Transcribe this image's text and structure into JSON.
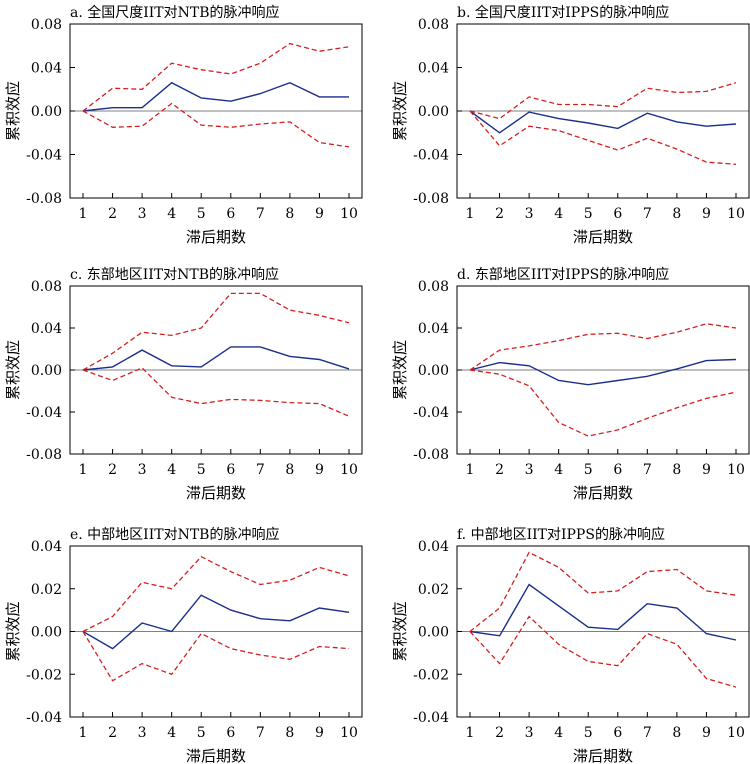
{
  "ylabel": "累积效应",
  "xlabel": "滞后期数",
  "colors": {
    "impulse": "#1a2f8a",
    "band": "#d42020",
    "zero": "#808080",
    "axis": "#000000"
  },
  "chart_data": [
    {
      "type": "line",
      "title": "a. 全国尺度IIT对NTB的脉冲响应",
      "x": [
        1,
        2,
        3,
        4,
        5,
        6,
        7,
        8,
        9,
        10
      ],
      "ylim": [
        -0.08,
        0.08
      ],
      "yticks": [
        "0.08",
        "0.04",
        "0.00",
        "-0.04",
        "-0.08"
      ],
      "ytick_values": [
        0.08,
        0.04,
        0.0,
        -0.04,
        -0.08
      ],
      "series": [
        {
          "role": "impulse",
          "values": [
            0.0,
            0.003,
            0.003,
            0.026,
            0.012,
            0.009,
            0.016,
            0.026,
            0.013,
            0.013
          ]
        },
        {
          "role": "upper",
          "values": [
            0.0,
            0.021,
            0.02,
            0.044,
            0.038,
            0.034,
            0.044,
            0.062,
            0.055,
            0.059
          ]
        },
        {
          "role": "lower",
          "values": [
            0.0,
            -0.015,
            -0.014,
            0.007,
            -0.013,
            -0.015,
            -0.012,
            -0.01,
            -0.029,
            -0.033
          ]
        }
      ]
    },
    {
      "type": "line",
      "title": "b. 全国尺度IIT对IPPS的脉冲响应",
      "x": [
        1,
        2,
        3,
        4,
        5,
        6,
        7,
        8,
        9,
        10
      ],
      "ylim": [
        -0.08,
        0.08
      ],
      "yticks": [
        "0.08",
        "0.04",
        "0.00",
        "-0.04",
        "-0.08"
      ],
      "ytick_values": [
        0.08,
        0.04,
        0.0,
        -0.04,
        -0.08
      ],
      "series": [
        {
          "role": "impulse",
          "values": [
            0.0,
            -0.02,
            -0.001,
            -0.007,
            -0.011,
            -0.016,
            -0.002,
            -0.01,
            -0.014,
            -0.012
          ]
        },
        {
          "role": "upper",
          "values": [
            0.0,
            -0.007,
            0.013,
            0.006,
            0.006,
            0.004,
            0.021,
            0.017,
            0.018,
            0.026
          ]
        },
        {
          "role": "lower",
          "values": [
            0.0,
            -0.032,
            -0.014,
            -0.018,
            -0.027,
            -0.036,
            -0.025,
            -0.035,
            -0.047,
            -0.049
          ]
        }
      ]
    },
    {
      "type": "line",
      "title": "c. 东部地区IIT对NTB的脉冲响应",
      "x": [
        1,
        2,
        3,
        4,
        5,
        6,
        7,
        8,
        9,
        10
      ],
      "ylim": [
        -0.08,
        0.08
      ],
      "yticks": [
        "0.08",
        "0.04",
        "0.00",
        "-0.04",
        "-0.08"
      ],
      "ytick_values": [
        0.08,
        0.04,
        0.0,
        -0.04,
        -0.08
      ],
      "series": [
        {
          "role": "impulse",
          "values": [
            0.0,
            0.003,
            0.019,
            0.004,
            0.003,
            0.022,
            0.022,
            0.013,
            0.01,
            0.001
          ]
        },
        {
          "role": "upper",
          "values": [
            0.0,
            0.016,
            0.036,
            0.033,
            0.04,
            0.073,
            0.073,
            0.057,
            0.052,
            0.045
          ]
        },
        {
          "role": "lower",
          "values": [
            0.0,
            -0.01,
            0.002,
            -0.026,
            -0.032,
            -0.028,
            -0.029,
            -0.031,
            -0.032,
            -0.044
          ]
        }
      ]
    },
    {
      "type": "line",
      "title": "d. 东部地区IIT对IPPS的脉冲响应",
      "x": [
        1,
        2,
        3,
        4,
        5,
        6,
        7,
        8,
        9,
        10
      ],
      "ylim": [
        -0.08,
        0.08
      ],
      "yticks": [
        "0.08",
        "0.04",
        "0.00",
        "-0.04",
        "-0.08"
      ],
      "ytick_values": [
        0.08,
        0.04,
        0.0,
        -0.04,
        -0.08
      ],
      "series": [
        {
          "role": "impulse",
          "values": [
            0.0,
            0.007,
            0.004,
            -0.01,
            -0.014,
            -0.01,
            -0.006,
            0.001,
            0.009,
            0.01
          ]
        },
        {
          "role": "upper",
          "values": [
            0.0,
            0.019,
            0.023,
            0.028,
            0.034,
            0.035,
            0.03,
            0.036,
            0.044,
            0.04
          ]
        },
        {
          "role": "lower",
          "values": [
            0.0,
            -0.004,
            -0.015,
            -0.05,
            -0.063,
            -0.057,
            -0.046,
            -0.036,
            -0.027,
            -0.021
          ]
        }
      ]
    },
    {
      "type": "line",
      "title": "e. 中部地区IIT对NTB的脉冲响应",
      "x": [
        1,
        2,
        3,
        4,
        5,
        6,
        7,
        8,
        9,
        10
      ],
      "ylim": [
        -0.04,
        0.04
      ],
      "yticks": [
        "0.04",
        "0.02",
        "0.00",
        "-0.02",
        "-0.04"
      ],
      "ytick_values": [
        0.04,
        0.02,
        0.0,
        -0.02,
        -0.04
      ],
      "series": [
        {
          "role": "impulse",
          "values": [
            0.0,
            -0.008,
            0.004,
            0.0,
            0.017,
            0.01,
            0.006,
            0.005,
            0.011,
            0.009
          ]
        },
        {
          "role": "upper",
          "values": [
            0.0,
            0.007,
            0.023,
            0.02,
            0.035,
            0.028,
            0.022,
            0.024,
            0.03,
            0.026
          ]
        },
        {
          "role": "lower",
          "values": [
            0.0,
            -0.023,
            -0.015,
            -0.02,
            -0.001,
            -0.008,
            -0.011,
            -0.013,
            -0.007,
            -0.008
          ]
        }
      ]
    },
    {
      "type": "line",
      "title": "f. 中部地区IIT对IPPS的脉冲响应",
      "x": [
        1,
        2,
        3,
        4,
        5,
        6,
        7,
        8,
        9,
        10
      ],
      "ylim": [
        -0.04,
        0.04
      ],
      "yticks": [
        "0.04",
        "0.02",
        "0.00",
        "-0.02",
        "-0.04"
      ],
      "ytick_values": [
        0.04,
        0.02,
        0.0,
        -0.02,
        -0.04
      ],
      "series": [
        {
          "role": "impulse",
          "values": [
            0.0,
            -0.002,
            0.022,
            0.012,
            0.002,
            0.001,
            0.013,
            0.011,
            -0.001,
            -0.004
          ]
        },
        {
          "role": "upper",
          "values": [
            0.0,
            0.011,
            0.037,
            0.03,
            0.018,
            0.019,
            0.028,
            0.029,
            0.019,
            0.017
          ]
        },
        {
          "role": "lower",
          "values": [
            0.0,
            -0.015,
            0.007,
            -0.006,
            -0.014,
            -0.016,
            -0.001,
            -0.006,
            -0.022,
            -0.026
          ]
        }
      ]
    }
  ]
}
